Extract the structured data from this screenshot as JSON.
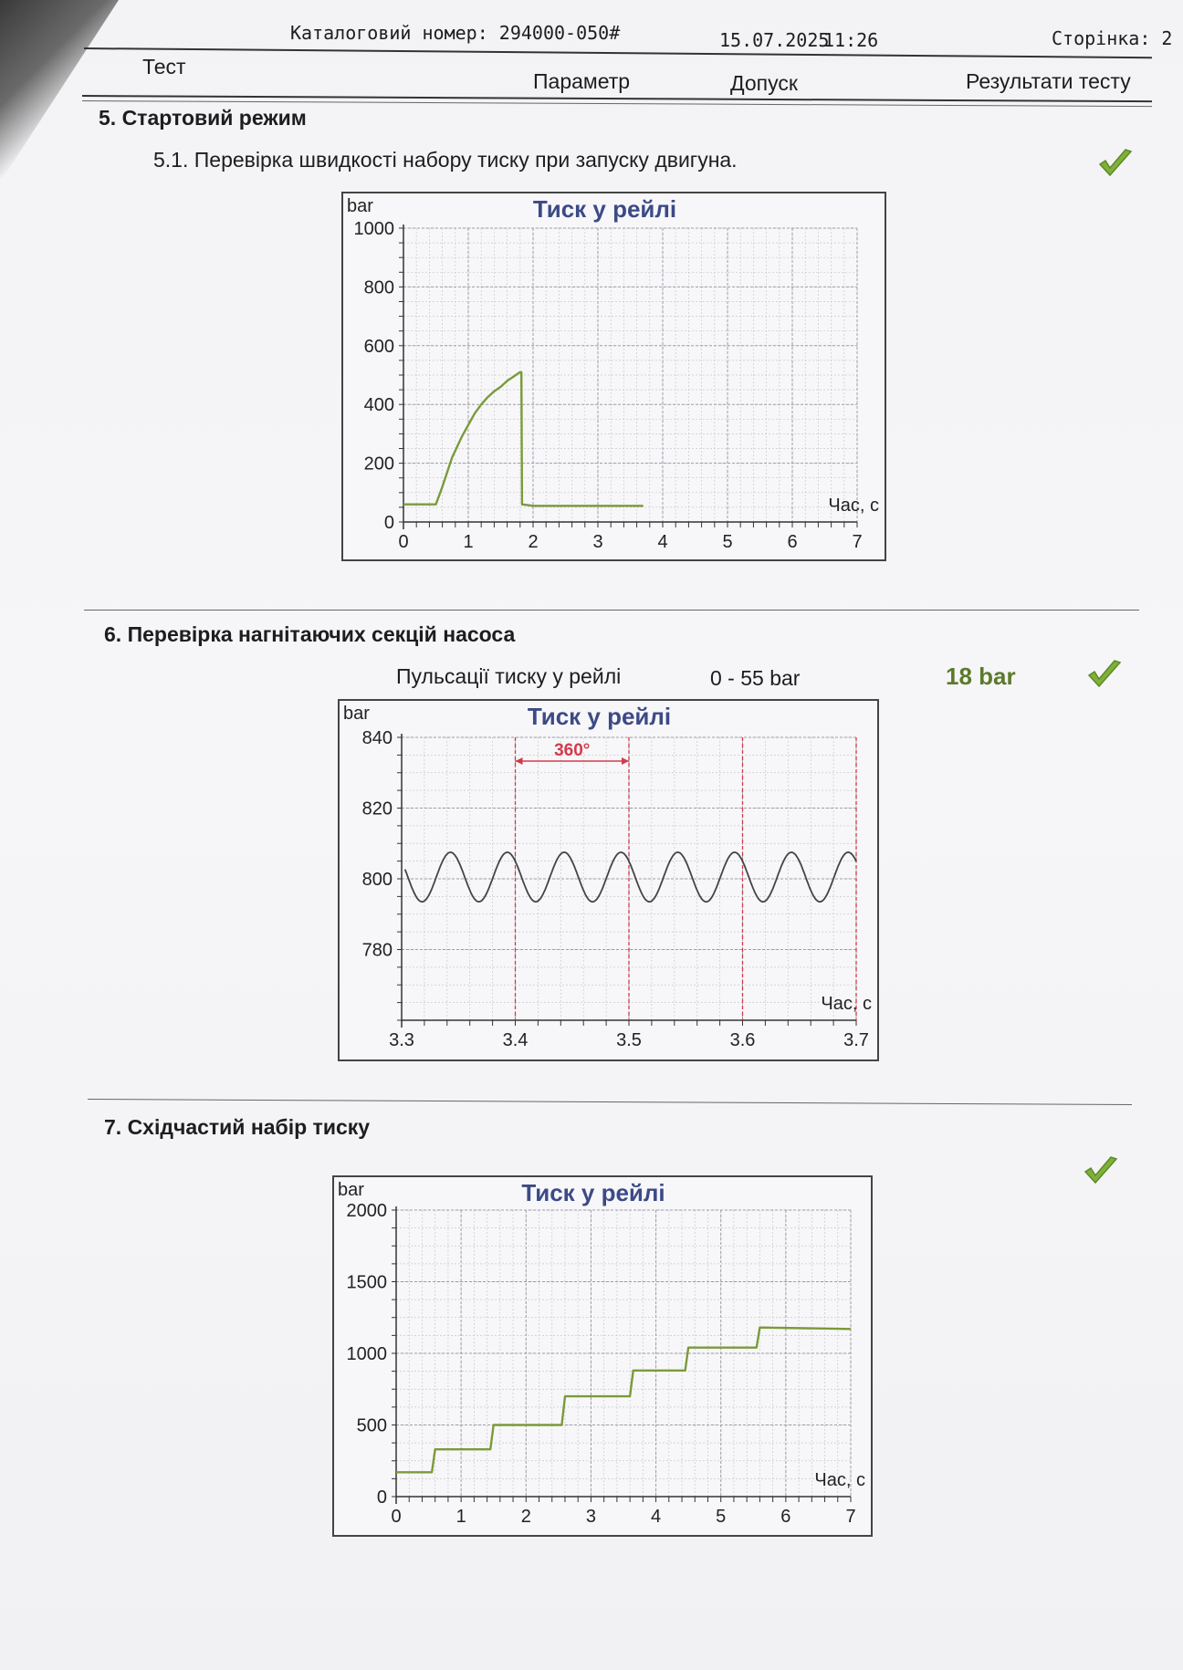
{
  "header": {
    "catalog": "Каталоговий номер: 294000-050#",
    "date": "15.07.2025",
    "time": "11:26",
    "page": "Сторінка: 2"
  },
  "columns": {
    "test": "Тест",
    "parameter": "Параметр",
    "tolerance": "Допуск",
    "results": "Результати тесту"
  },
  "sections": {
    "s5": {
      "title": "5. Стартовий режим",
      "sub": "5.1. Перевірка швидкості набору тиску при запуску двигуна."
    },
    "s6": {
      "title": "6. Перевірка нагнітаючих секцій насоса",
      "param": "Пульсації тиску у рейлі",
      "tolerance": "0 - 55 bar",
      "result": "18 bar"
    },
    "s7": {
      "title": "7. Східчастий набір тиску"
    }
  },
  "colors": {
    "trace": "#7b9a3a",
    "annotation": "#d23b4b",
    "title": "#3c4a86",
    "check": "#7fb03a"
  },
  "chart_data": [
    {
      "type": "line",
      "title": "Тиск у рейлі",
      "ylabel": "bar",
      "xlabel": "Час, с",
      "xlim": [
        0,
        7
      ],
      "ylim": [
        0,
        1000
      ],
      "x_ticks": [
        0,
        1,
        2,
        3,
        4,
        5,
        6,
        7
      ],
      "y_ticks": [
        0,
        200,
        400,
        600,
        800,
        1000
      ],
      "grid": true,
      "series": [
        {
          "points": [
            [
              0,
              60
            ],
            [
              0.3,
              60
            ],
            [
              0.5,
              60
            ],
            [
              0.6,
              120
            ],
            [
              0.75,
              220
            ],
            [
              0.9,
              290
            ],
            [
              1.0,
              330
            ],
            [
              1.1,
              370
            ],
            [
              1.2,
              400
            ],
            [
              1.3,
              425
            ],
            [
              1.4,
              445
            ],
            [
              1.5,
              460
            ],
            [
              1.6,
              480
            ],
            [
              1.7,
              495
            ],
            [
              1.8,
              510
            ],
            [
              1.82,
              510
            ],
            [
              1.83,
              60
            ],
            [
              2.0,
              55
            ],
            [
              2.5,
              55
            ],
            [
              3.0,
              55
            ],
            [
              3.5,
              55
            ],
            [
              3.7,
              55
            ]
          ]
        }
      ]
    },
    {
      "type": "line",
      "title": "Тиск у рейлі",
      "ylabel": "bar",
      "xlabel": "Час, с",
      "xlim": [
        3.3,
        3.7
      ],
      "ylim": [
        760,
        840
      ],
      "x_ticks": [
        3.3,
        3.4,
        3.5,
        3.6,
        3.7
      ],
      "y_ticks": [
        780,
        800,
        820,
        840
      ],
      "grid": true,
      "annotation": {
        "label": "360°",
        "x_from": 3.4,
        "x_to": 3.5
      },
      "sine": {
        "x_start": 3.303,
        "x_end": 3.7,
        "center": 800.5,
        "amplitude": 7,
        "period": 0.05,
        "phase_peak": 3.343
      }
    },
    {
      "type": "line",
      "title": "Тиск у рейлі",
      "ylabel": "bar",
      "xlabel": "Час, с",
      "xlim": [
        0,
        7
      ],
      "ylim": [
        0,
        2000
      ],
      "x_ticks": [
        0,
        1,
        2,
        3,
        4,
        5,
        6,
        7
      ],
      "y_ticks": [
        0,
        500,
        1000,
        1500,
        2000
      ],
      "grid": true,
      "series": [
        {
          "points": [
            [
              0,
              170
            ],
            [
              0.55,
              170
            ],
            [
              0.6,
              330
            ],
            [
              1.45,
              330
            ],
            [
              1.5,
              500
            ],
            [
              2.55,
              500
            ],
            [
              2.6,
              700
            ],
            [
              3.6,
              700
            ],
            [
              3.65,
              880
            ],
            [
              4.45,
              880
            ],
            [
              4.5,
              1040
            ],
            [
              5.55,
              1040
            ],
            [
              5.6,
              1180
            ],
            [
              7.0,
              1170
            ]
          ]
        }
      ]
    }
  ]
}
